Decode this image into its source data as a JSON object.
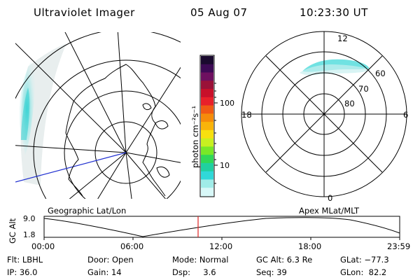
{
  "header": {
    "instrument": "Ultraviolet Imager",
    "date": "05 Aug 07",
    "time": "10:23:30 UT"
  },
  "colorbar": {
    "unit_label": "photon cm⁻²s⁻¹",
    "ticks": [
      "100",
      "10"
    ],
    "colors": [
      "#1a0a2e",
      "#3d0a55",
      "#6e1060",
      "#9a1238",
      "#c8102a",
      "#e8202a",
      "#f05a14",
      "#f58c0a",
      "#f9b40a",
      "#f7e010",
      "#c8f020",
      "#78e828",
      "#30d858",
      "#20d0a0",
      "#30d8d8",
      "#a0ece8",
      "#d8f8f8"
    ]
  },
  "left_map": {
    "caption": "Geographic Lat/Lon",
    "aurora_color": "#40d8d8"
  },
  "right_map": {
    "caption": "Apex MLat/MLT",
    "mlt_labels": {
      "top": "12",
      "left": "18",
      "right": "6",
      "bottom": "0"
    },
    "lat_labels": [
      "60",
      "70",
      "80"
    ],
    "aurora_color": "#40d8d8"
  },
  "altitude_plot": {
    "ylabel": "GC Alt",
    "y_ticks": [
      "9.0",
      "1.8"
    ],
    "x_ticks": [
      "00:00",
      "06:00",
      "12:00",
      "18:00",
      "23:59"
    ],
    "current_time_marker_color": "#e02020",
    "current_time_fraction": 0.433
  },
  "status": {
    "col1": [
      "Flt: LBHL",
      "IP: 36.0"
    ],
    "col2": [
      "Door: Open",
      "Gain: 14"
    ],
    "col3": [
      "Mode: Normal",
      "Dsp:     3.6"
    ],
    "col4": [
      "GC Alt: 6.3 Re",
      "Seq: 39"
    ],
    "col5": [
      "GLat: −77.3",
      "GLon:  82.2"
    ]
  }
}
